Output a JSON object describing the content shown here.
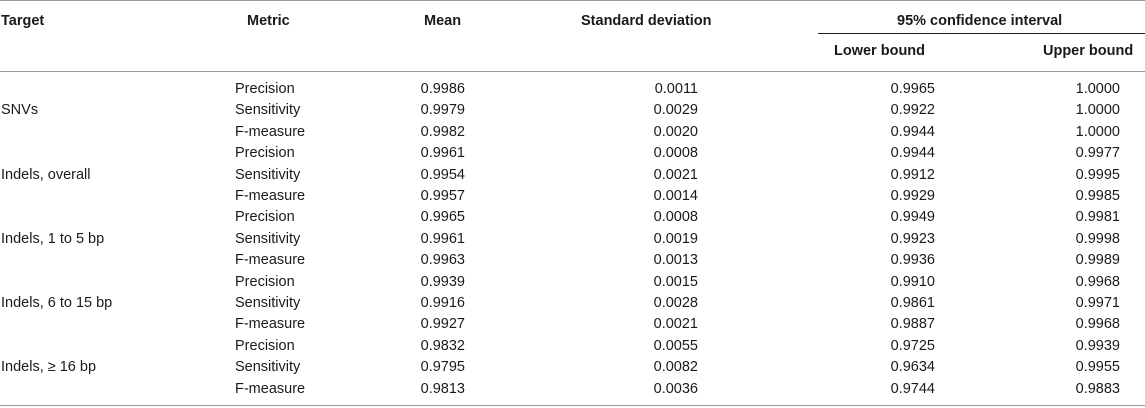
{
  "headers": {
    "target": "Target",
    "metric": "Metric",
    "mean": "Mean",
    "sd": "Standard deviation",
    "ci": "95% confidence interval",
    "lower": "Lower bound",
    "upper": "Upper bound"
  },
  "rows": [
    {
      "target": "",
      "metric": "Precision",
      "mean": "0.9986",
      "sd": "0.0011",
      "lower": "0.9965",
      "upper": "1.0000"
    },
    {
      "target": "SNVs",
      "metric": "Sensitivity",
      "mean": "0.9979",
      "sd": "0.0029",
      "lower": "0.9922",
      "upper": "1.0000"
    },
    {
      "target": "",
      "metric": "F-measure",
      "mean": "0.9982",
      "sd": "0.0020",
      "lower": "0.9944",
      "upper": "1.0000"
    },
    {
      "target": "",
      "metric": "Precision",
      "mean": "0.9961",
      "sd": "0.0008",
      "lower": "0.9944",
      "upper": "0.9977"
    },
    {
      "target": "Indels, overall",
      "metric": "Sensitivity",
      "mean": "0.9954",
      "sd": "0.0021",
      "lower": "0.9912",
      "upper": "0.9995"
    },
    {
      "target": "",
      "metric": "F-measure",
      "mean": "0.9957",
      "sd": "0.0014",
      "lower": "0.9929",
      "upper": "0.9985"
    },
    {
      "target": "",
      "metric": "Precision",
      "mean": "0.9965",
      "sd": "0.0008",
      "lower": "0.9949",
      "upper": "0.9981"
    },
    {
      "target": "Indels, 1 to 5 bp",
      "metric": "Sensitivity",
      "mean": "0.9961",
      "sd": "0.0019",
      "lower": "0.9923",
      "upper": "0.9998"
    },
    {
      "target": "",
      "metric": "F-measure",
      "mean": "0.9963",
      "sd": "0.0013",
      "lower": "0.9936",
      "upper": "0.9989"
    },
    {
      "target": "",
      "metric": "Precision",
      "mean": "0.9939",
      "sd": "0.0015",
      "lower": "0.9910",
      "upper": "0.9968"
    },
    {
      "target": "Indels, 6 to 15 bp",
      "metric": "Sensitivity",
      "mean": "0.9916",
      "sd": "0.0028",
      "lower": "0.9861",
      "upper": "0.9971"
    },
    {
      "target": "",
      "metric": "F-measure",
      "mean": "0.9927",
      "sd": "0.0021",
      "lower": "0.9887",
      "upper": "0.9968"
    },
    {
      "target": "",
      "metric": "Precision",
      "mean": "0.9832",
      "sd": "0.0055",
      "lower": "0.9725",
      "upper": "0.9939"
    },
    {
      "target": "Indels, ≥ 16 bp",
      "metric": "Sensitivity",
      "mean": "0.9795",
      "sd": "0.0082",
      "lower": "0.9634",
      "upper": "0.9955"
    },
    {
      "target": "",
      "metric": "F-measure",
      "mean": "0.9813",
      "sd": "0.0036",
      "lower": "0.9744",
      "upper": "0.9883"
    }
  ]
}
